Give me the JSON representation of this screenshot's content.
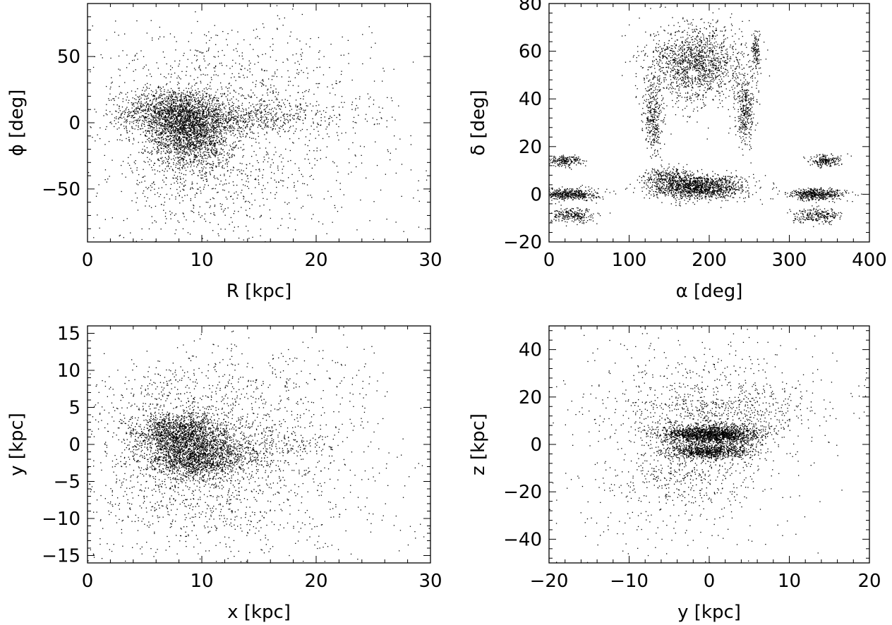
{
  "chart_data": [
    {
      "id": "panel-r-phi",
      "type": "scatter",
      "xlabel": "R [kpc]",
      "ylabel": "ϕ [deg]",
      "xlim": [
        0,
        30
      ],
      "ylim": [
        -90,
        90
      ],
      "xticks": [
        0,
        10,
        20,
        30
      ],
      "yticks": [
        -50,
        0,
        50
      ],
      "xtick_labels": [
        "0",
        "10",
        "20",
        "30"
      ],
      "ytick_labels": [
        "−50",
        "0",
        "50"
      ],
      "grid": false,
      "clusters": [
        {
          "cx": 7.5,
          "cy": 8,
          "sx": 2.2,
          "sy": 9,
          "n": 1400
        },
        {
          "cx": 9.0,
          "cy": -10,
          "sx": 1.8,
          "sy": 12,
          "n": 1600
        },
        {
          "cx": 12.0,
          "cy": 2,
          "sx": 3.5,
          "sy": 6,
          "n": 500
        },
        {
          "cx": 16.0,
          "cy": 6,
          "sx": 5.0,
          "sy": 8,
          "n": 300
        },
        {
          "cx": 10.0,
          "cy": -45,
          "sx": 4.0,
          "sy": 22,
          "n": 500
        },
        {
          "cx": 12.0,
          "cy": 35,
          "sx": 6.0,
          "sy": 22,
          "n": 500
        },
        {
          "cx": 15.0,
          "cy": -20,
          "sx": 8.0,
          "sy": 40,
          "n": 500
        }
      ]
    },
    {
      "id": "panel-alpha-delta",
      "type": "scatter",
      "xlabel": "α [deg]",
      "ylabel": "δ [deg]",
      "xlim": [
        0,
        400
      ],
      "ylim": [
        -20,
        80
      ],
      "xticks": [
        0,
        100,
        200,
        300,
        400
      ],
      "yticks": [
        -20,
        0,
        20,
        40,
        60,
        80
      ],
      "xtick_labels": [
        "0",
        "100",
        "200",
        "300",
        "400"
      ],
      "ytick_labels": [
        "−20",
        "0",
        "20",
        "40",
        "60",
        "80"
      ],
      "grid": false,
      "clusters": [
        {
          "cx": 185,
          "cy": 3,
          "sx": 30,
          "sy": 2.5,
          "n": 1500
        },
        {
          "cx": 25,
          "cy": 0,
          "sx": 18,
          "sy": 1.2,
          "n": 500
        },
        {
          "cx": 335,
          "cy": 0,
          "sx": 18,
          "sy": 1.2,
          "n": 500
        },
        {
          "cx": 20,
          "cy": 14,
          "sx": 10,
          "sy": 1.2,
          "n": 200
        },
        {
          "cx": 345,
          "cy": 14,
          "sx": 10,
          "sy": 1.2,
          "n": 200
        },
        {
          "cx": 30,
          "cy": -9,
          "sx": 15,
          "sy": 1.5,
          "n": 250
        },
        {
          "cx": 335,
          "cy": -9,
          "sx": 15,
          "sy": 1.5,
          "n": 250
        },
        {
          "cx": 150,
          "cy": 8,
          "sx": 15,
          "sy": 1.5,
          "n": 200
        },
        {
          "cx": 185,
          "cy": 55,
          "sx": 30,
          "sy": 8,
          "n": 1500
        },
        {
          "cx": 130,
          "cy": 32,
          "sx": 6,
          "sy": 8,
          "n": 350
        },
        {
          "cx": 245,
          "cy": 35,
          "sx": 6,
          "sy": 7,
          "n": 350
        },
        {
          "cx": 258,
          "cy": 60,
          "sx": 2.5,
          "sy": 4,
          "n": 120
        }
      ]
    },
    {
      "id": "panel-x-y",
      "type": "scatter",
      "xlabel": "x [kpc]",
      "ylabel": "y [kpc]",
      "xlim": [
        0,
        30
      ],
      "ylim": [
        -16,
        16
      ],
      "xticks": [
        0,
        10,
        20,
        30
      ],
      "yticks": [
        -15,
        -10,
        -5,
        0,
        5,
        10,
        15
      ],
      "xtick_labels": [
        "0",
        "10",
        "20",
        "30"
      ],
      "ytick_labels": [
        "−15",
        "−10",
        "−5",
        "0",
        "5",
        "10",
        "15"
      ],
      "grid": false,
      "clusters": [
        {
          "cx": 8.0,
          "cy": 1.5,
          "sx": 2.0,
          "sy": 1.3,
          "n": 1300
        },
        {
          "cx": 9.5,
          "cy": -1.8,
          "sx": 2.2,
          "sy": 1.4,
          "n": 1600
        },
        {
          "cx": 14.0,
          "cy": 0.0,
          "sx": 4.0,
          "sy": 1.8,
          "n": 500
        },
        {
          "cx": 8.0,
          "cy": 4.5,
          "sx": 4.0,
          "sy": 3.5,
          "n": 500
        },
        {
          "cx": 9.0,
          "cy": -6.0,
          "sx": 5.0,
          "sy": 4.0,
          "n": 700
        },
        {
          "cx": 15.0,
          "cy": 7.0,
          "sx": 6.0,
          "sy": 4.0,
          "n": 400
        },
        {
          "cx": 14.0,
          "cy": -8.0,
          "sx": 8.0,
          "sy": 5.0,
          "n": 400
        }
      ]
    },
    {
      "id": "panel-y-z",
      "type": "scatter",
      "xlabel": "y [kpc]",
      "ylabel": "z [kpc]",
      "xlim": [
        -20,
        20
      ],
      "ylim": [
        -50,
        50
      ],
      "xticks": [
        -20,
        -10,
        0,
        10,
        20
      ],
      "yticks": [
        -40,
        -20,
        0,
        20,
        40
      ],
      "xtick_labels": [
        "−20",
        "−10",
        "0",
        "10",
        "20"
      ],
      "ytick_labels": [
        "−40",
        "−20",
        "0",
        "20",
        "40"
      ],
      "grid": false,
      "clusters": [
        {
          "cx": 0.0,
          "cy": 4.0,
          "sx": 3.0,
          "sy": 2.0,
          "n": 1800
        },
        {
          "cx": 0.0,
          "cy": -3.0,
          "sx": 2.5,
          "sy": 1.6,
          "n": 900
        },
        {
          "cx": 1.0,
          "cy": 12.0,
          "sx": 6.0,
          "sy": 7.0,
          "n": 700
        },
        {
          "cx": -3.0,
          "cy": -10.0,
          "sx": 5.0,
          "sy": 7.0,
          "n": 400
        },
        {
          "cx": 0.0,
          "cy": 25.0,
          "sx": 9.0,
          "sy": 14.0,
          "n": 400
        },
        {
          "cx": -5.0,
          "cy": -25.0,
          "sx": 8.0,
          "sy": 14.0,
          "n": 250
        }
      ]
    }
  ],
  "panels_layout": [
    {
      "x0": 124,
      "y0": 5,
      "w": 486,
      "h": 338
    },
    {
      "x0": 778,
      "y0": 5,
      "w": 454,
      "h": 338
    },
    {
      "x0": 124,
      "y0": 462,
      "w": 486,
      "h": 336
    },
    {
      "x0": 778,
      "y0": 462,
      "w": 454,
      "h": 336
    }
  ]
}
